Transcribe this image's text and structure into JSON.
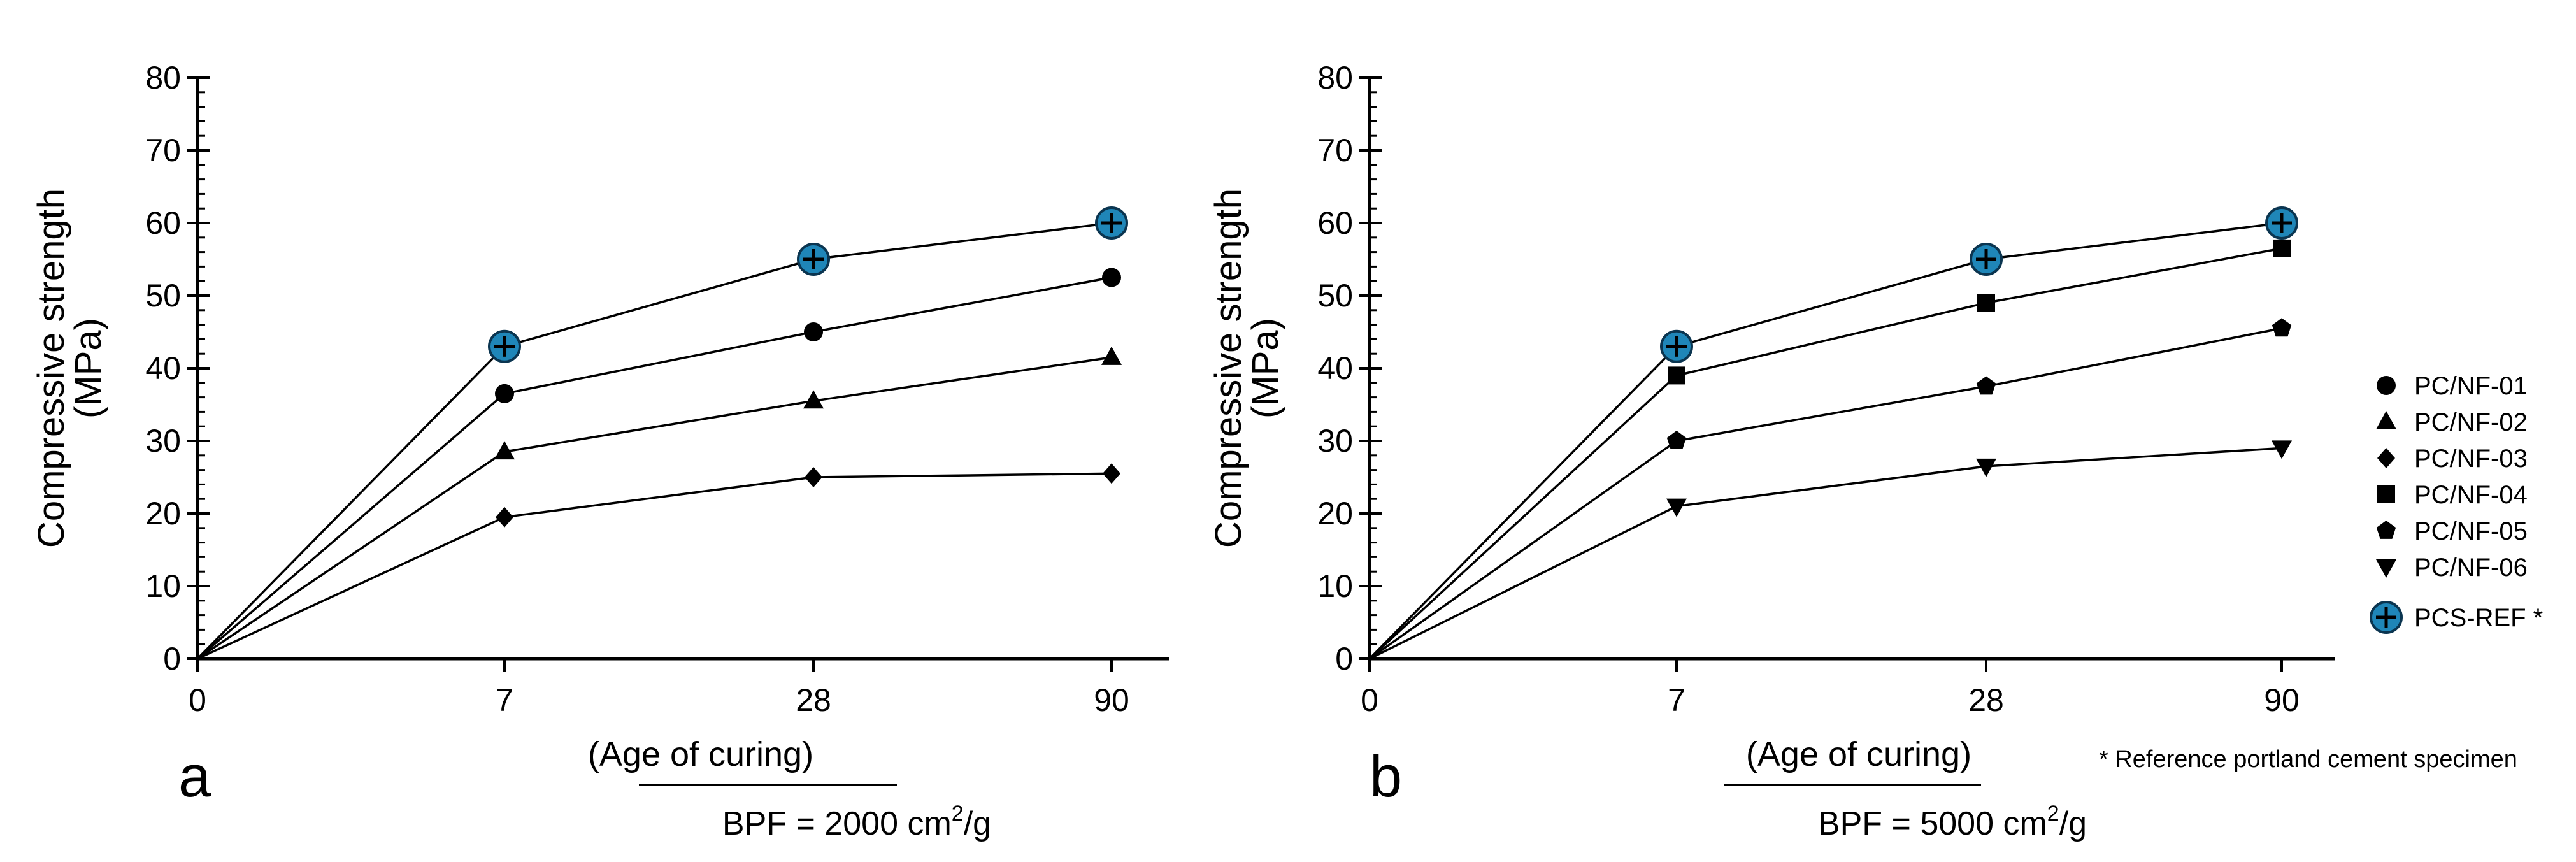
{
  "chart_data": [
    {
      "type": "line",
      "panel": "a",
      "categories": [
        "0",
        "7",
        "28",
        "90"
      ],
      "ylabel_line1": "Compressive strength",
      "ylabel_line2": "(MPa)",
      "xlabel": "(Age of curing)",
      "bpf_prefix": "BPF =  2000 cm",
      "bpf_sup": "2",
      "bpf_suffix": "/g",
      "ylim": [
        0,
        80
      ],
      "yticks": [
        0,
        10,
        20,
        30,
        40,
        50,
        60,
        70,
        80
      ],
      "series": [
        {
          "name": "PCS-REF",
          "marker": "ref",
          "values": [
            0,
            43,
            55,
            60
          ]
        },
        {
          "name": "PC/NF-01",
          "marker": "circle",
          "values": [
            0,
            36.5,
            45,
            52.5
          ]
        },
        {
          "name": "PC/NF-02",
          "marker": "triangle-up",
          "values": [
            0,
            28.5,
            35.5,
            41.5
          ]
        },
        {
          "name": "PC/NF-03",
          "marker": "diamond",
          "values": [
            0,
            19.5,
            25,
            25.5
          ]
        }
      ]
    },
    {
      "type": "line",
      "panel": "b",
      "categories": [
        "0",
        "7",
        "28",
        "90"
      ],
      "ylabel_line1": "Compressive strength",
      "ylabel_line2": "(MPa)",
      "xlabel": "(Age of curing)",
      "bpf_prefix": "BPF = 5000 cm",
      "bpf_sup": "2",
      "bpf_suffix": "/g",
      "ylim": [
        0,
        80
      ],
      "yticks": [
        0,
        10,
        20,
        30,
        40,
        50,
        60,
        70,
        80
      ],
      "series": [
        {
          "name": "PCS-REF",
          "marker": "ref",
          "values": [
            0,
            43,
            55,
            60
          ]
        },
        {
          "name": "PC/NF-04",
          "marker": "square",
          "values": [
            0,
            39,
            49,
            56.5
          ]
        },
        {
          "name": "PC/NF-05",
          "marker": "pentagon",
          "values": [
            0,
            30,
            37.5,
            45.5
          ]
        },
        {
          "name": "PC/NF-06",
          "marker": "triangle-down",
          "values": [
            0,
            21,
            26.5,
            29
          ]
        }
      ]
    }
  ],
  "legend": {
    "items": [
      {
        "name": "PC/NF-01",
        "marker": "circle"
      },
      {
        "name": "PC/NF-02",
        "marker": "triangle-up"
      },
      {
        "name": "PC/NF-03",
        "marker": "diamond"
      },
      {
        "name": "PC/NF-04",
        "marker": "square"
      },
      {
        "name": "PC/NF-05",
        "marker": "pentagon"
      },
      {
        "name": "PC/NF-06",
        "marker": "triangle-down"
      },
      {
        "name": "PCS-REF",
        "marker": "ref",
        "suffix": " *"
      }
    ],
    "footnote": "* Reference portland cement specimen"
  },
  "colors": {
    "ref_fill": "#1f86b8",
    "ref_stroke": "#0b3550",
    "ink": "#000000"
  }
}
